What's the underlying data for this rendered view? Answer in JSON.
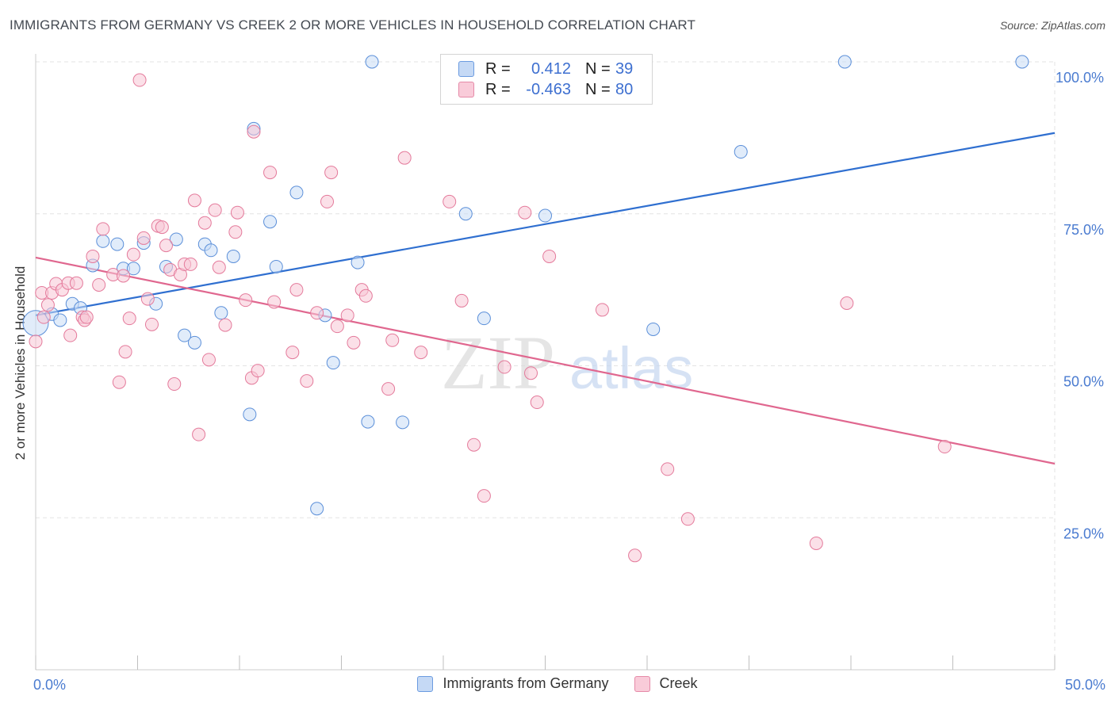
{
  "title": "IMMIGRANTS FROM GERMANY VS CREEK 2 OR MORE VEHICLES IN HOUSEHOLD CORRELATION CHART",
  "source": "Source: ZipAtlas.com",
  "watermark": {
    "zip": "ZIP",
    "atlas": "atlas"
  },
  "legend": {
    "r_label": "R =",
    "n_label": "N =",
    "rows": [
      {
        "r": "0.412",
        "n": "39",
        "color": "#6b9be0",
        "fill": "#c5d9f5"
      },
      {
        "r": "-0.463",
        "n": "80",
        "color": "#e58aa8",
        "fill": "#f9cbd9"
      }
    ]
  },
  "chart_data": {
    "type": "scatter",
    "title": "IMMIGRANTS FROM GERMANY VS CREEK 2 OR MORE VEHICLES IN HOUSEHOLD CORRELATION CHART",
    "xlabel": "",
    "ylabel": "2 or more Vehicles in Household",
    "xlim": [
      0,
      50
    ],
    "ylim": [
      0,
      100
    ],
    "x_tick_labels": [
      {
        "x": 0,
        "label": "0.0%"
      },
      {
        "x": 50,
        "label": "50.0%"
      }
    ],
    "y_tick_labels": [
      {
        "y": 25,
        "label": "25.0%"
      },
      {
        "y": 50,
        "label": "50.0%"
      },
      {
        "y": 75,
        "label": "75.0%"
      },
      {
        "y": 100,
        "label": "100.0%"
      }
    ],
    "grid": true,
    "legend_position": "top-center",
    "series": [
      {
        "name": "Immigrants from Germany",
        "color": "#5b8fd9",
        "fill": "#c9dcf6",
        "trend": {
          "x": [
            0,
            50
          ],
          "y": [
            58.3,
            88.3
          ]
        },
        "points": [
          [
            0.0,
            57.0
          ],
          [
            0.8,
            58.5
          ],
          [
            1.2,
            57.5
          ],
          [
            1.8,
            60.2
          ],
          [
            2.2,
            59.5
          ],
          [
            2.8,
            66.5
          ],
          [
            3.3,
            70.5
          ],
          [
            4.0,
            70.0
          ],
          [
            4.3,
            66.0
          ],
          [
            4.8,
            66.0
          ],
          [
            5.3,
            70.2
          ],
          [
            5.9,
            60.2
          ],
          [
            6.4,
            66.3
          ],
          [
            6.9,
            70.8
          ],
          [
            7.3,
            55.0
          ],
          [
            7.8,
            53.8
          ],
          [
            8.3,
            70.0
          ],
          [
            8.6,
            69.0
          ],
          [
            9.1,
            58.7
          ],
          [
            9.7,
            68.0
          ],
          [
            10.5,
            42.0
          ],
          [
            10.7,
            89.0
          ],
          [
            11.5,
            73.7
          ],
          [
            11.8,
            66.3
          ],
          [
            12.8,
            78.5
          ],
          [
            13.8,
            26.5
          ],
          [
            14.2,
            58.3
          ],
          [
            14.6,
            50.5
          ],
          [
            15.8,
            67.0
          ],
          [
            16.3,
            40.8
          ],
          [
            16.5,
            100.0
          ],
          [
            18.0,
            40.7
          ],
          [
            21.1,
            75.0
          ],
          [
            22.0,
            57.8
          ],
          [
            25.0,
            74.7
          ],
          [
            30.3,
            56.0
          ],
          [
            34.6,
            85.2
          ],
          [
            39.7,
            100.0
          ],
          [
            48.4,
            100.0
          ]
        ],
        "large_point_index": 0
      },
      {
        "name": "Creek",
        "color": "#e47a9b",
        "fill": "#f7c6d5",
        "trend": {
          "x": [
            0,
            50
          ],
          "y": [
            67.8,
            33.9
          ]
        },
        "points": [
          [
            0.0,
            54.0
          ],
          [
            0.3,
            62.0
          ],
          [
            0.6,
            60.0
          ],
          [
            0.8,
            62.0
          ],
          [
            1.0,
            63.5
          ],
          [
            1.3,
            62.5
          ],
          [
            1.6,
            63.6
          ],
          [
            1.7,
            55.0
          ],
          [
            2.0,
            63.6
          ],
          [
            2.3,
            58.0
          ],
          [
            2.4,
            57.5
          ],
          [
            2.5,
            58.0
          ],
          [
            2.8,
            68.0
          ],
          [
            3.1,
            63.3
          ],
          [
            3.3,
            72.5
          ],
          [
            3.8,
            65.0
          ],
          [
            4.1,
            47.3
          ],
          [
            4.3,
            64.8
          ],
          [
            4.4,
            52.3
          ],
          [
            4.6,
            57.8
          ],
          [
            4.8,
            68.3
          ],
          [
            5.1,
            97.0
          ],
          [
            5.3,
            71.0
          ],
          [
            5.5,
            61.0
          ],
          [
            5.7,
            56.8
          ],
          [
            6.0,
            73.0
          ],
          [
            6.2,
            72.8
          ],
          [
            6.4,
            69.8
          ],
          [
            6.6,
            65.8
          ],
          [
            6.8,
            47.0
          ],
          [
            7.1,
            65.0
          ],
          [
            7.3,
            66.7
          ],
          [
            7.6,
            66.7
          ],
          [
            7.8,
            77.2
          ],
          [
            8.0,
            38.7
          ],
          [
            8.3,
            73.5
          ],
          [
            8.5,
            51.0
          ],
          [
            8.8,
            75.6
          ],
          [
            9.0,
            66.2
          ],
          [
            9.3,
            56.7
          ],
          [
            9.8,
            72.0
          ],
          [
            9.9,
            75.2
          ],
          [
            10.3,
            60.8
          ],
          [
            10.6,
            48.0
          ],
          [
            10.7,
            88.5
          ],
          [
            10.9,
            49.2
          ],
          [
            11.5,
            81.8
          ],
          [
            11.7,
            60.5
          ],
          [
            12.6,
            52.2
          ],
          [
            12.8,
            62.5
          ],
          [
            13.3,
            47.5
          ],
          [
            13.8,
            58.7
          ],
          [
            14.3,
            77.0
          ],
          [
            14.5,
            81.8
          ],
          [
            14.8,
            56.5
          ],
          [
            15.3,
            58.3
          ],
          [
            15.6,
            53.8
          ],
          [
            16.0,
            62.5
          ],
          [
            16.2,
            61.5
          ],
          [
            17.3,
            46.2
          ],
          [
            17.5,
            54.2
          ],
          [
            18.1,
            84.2
          ],
          [
            18.9,
            52.2
          ],
          [
            20.3,
            77.0
          ],
          [
            20.9,
            60.7
          ],
          [
            21.5,
            37.0
          ],
          [
            22.0,
            28.6
          ],
          [
            23.0,
            49.8
          ],
          [
            24.0,
            75.2
          ],
          [
            24.3,
            48.8
          ],
          [
            24.6,
            44.0
          ],
          [
            25.2,
            68.0
          ],
          [
            27.8,
            59.2
          ],
          [
            29.4,
            18.8
          ],
          [
            31.0,
            33.0
          ],
          [
            32.0,
            24.8
          ],
          [
            38.3,
            20.8
          ],
          [
            39.8,
            60.3
          ],
          [
            44.6,
            36.7
          ],
          [
            0.4,
            58.0
          ]
        ]
      }
    ]
  }
}
